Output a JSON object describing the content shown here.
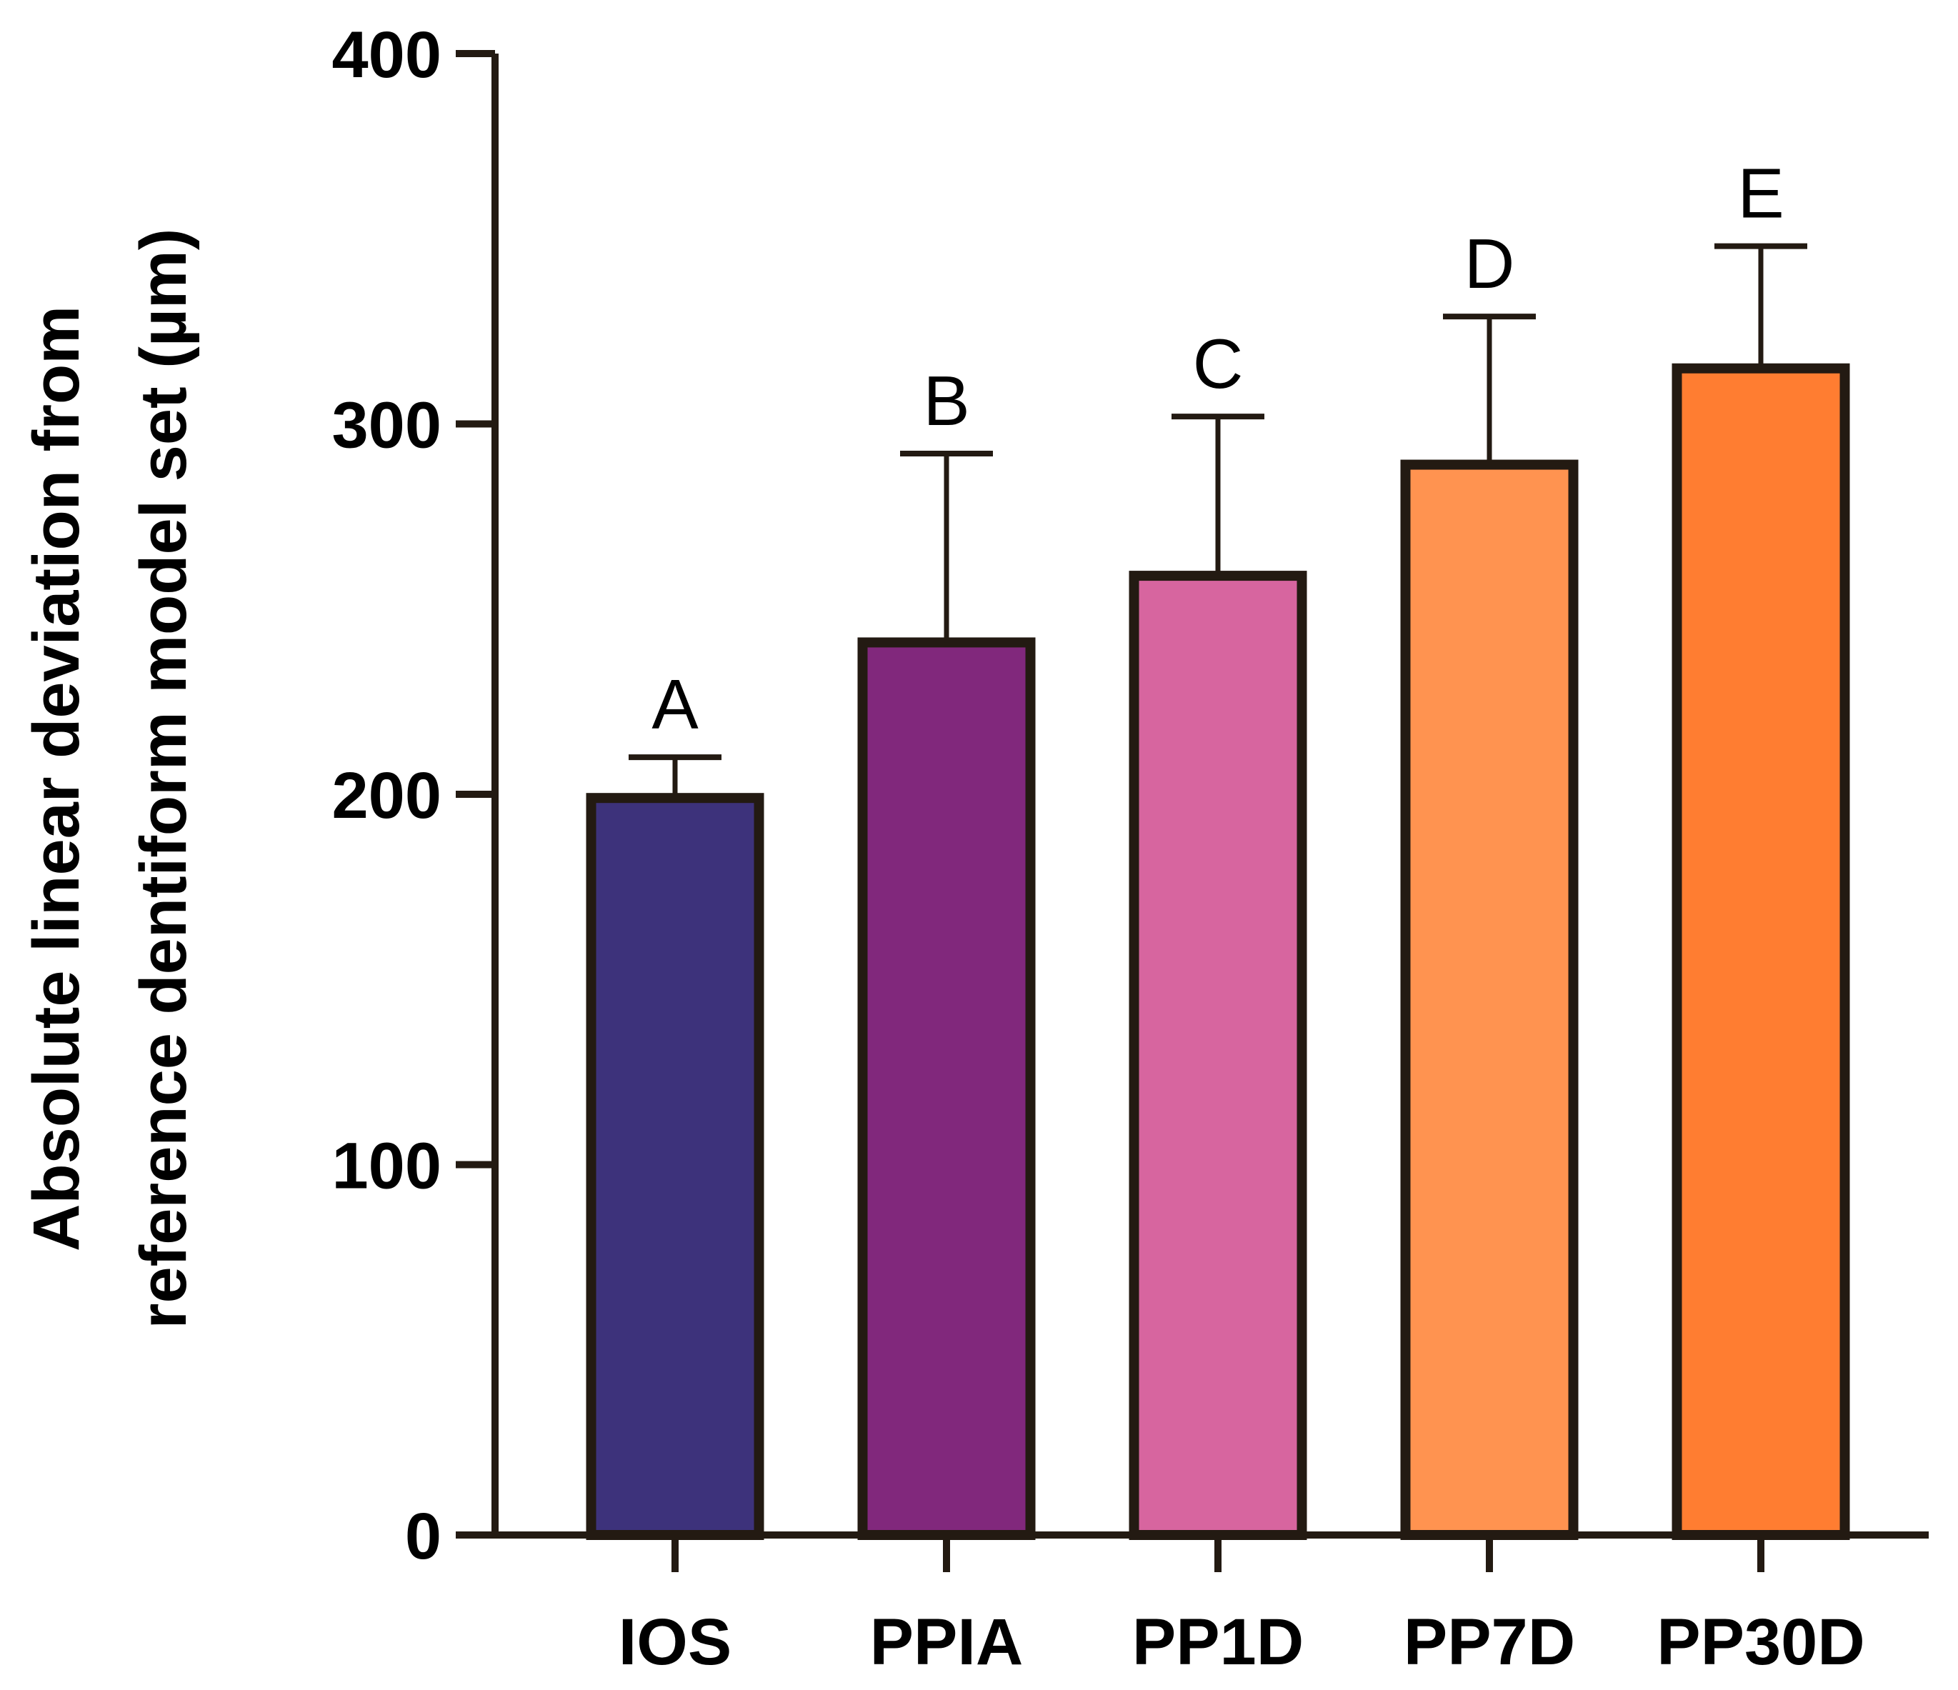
{
  "chart_data": {
    "type": "bar",
    "title": "",
    "xlabel": "",
    "ylabel_lines": [
      "Absolute linear deviation from",
      "reference dentiform model set (µm)"
    ],
    "ylim": [
      0,
      400
    ],
    "yticks": [
      0,
      100,
      200,
      300,
      400
    ],
    "ytick_labels": [
      "0",
      "100",
      "200",
      "300",
      "400"
    ],
    "categories": [
      "IOS",
      "PPIA",
      "PP1D",
      "PP7D",
      "PP30D"
    ],
    "values": [
      199,
      241,
      259,
      289,
      315
    ],
    "error_upper": [
      210,
      292,
      302,
      329,
      348
    ],
    "significance_letters": [
      "A",
      "B",
      "C",
      "D",
      "E"
    ],
    "colors": [
      "#3d327b",
      "#81287c",
      "#d7659f",
      "#ff9350",
      "#ff7d31"
    ],
    "edge_color": "#231a12",
    "grid": false,
    "legend": "none"
  }
}
